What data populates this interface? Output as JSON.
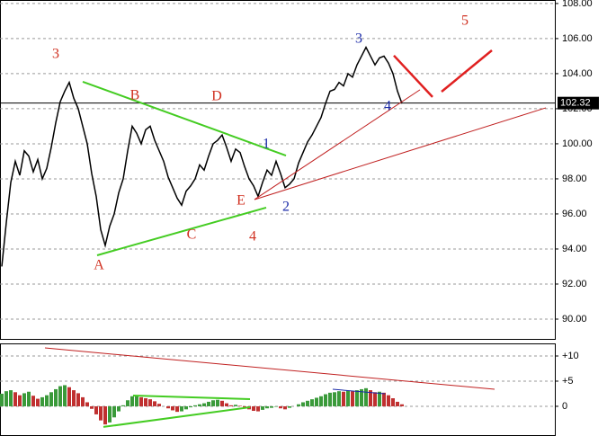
{
  "chart_data": [
    {
      "type": "line",
      "color": "#000000",
      "grid": true,
      "xlim": [
        -0.4,
        123
      ],
      "ylim": [
        88.82,
        108.2
      ],
      "yticks": [
        {
          "value": 90,
          "label": "90.00"
        },
        {
          "value": 92,
          "label": "92.00"
        },
        {
          "value": 94,
          "label": "94.00"
        },
        {
          "value": 96,
          "label": "96.00"
        },
        {
          "value": 98,
          "label": "98.00"
        },
        {
          "value": 100,
          "label": "100.00"
        },
        {
          "value": 102,
          "label": "102.00"
        },
        {
          "value": 104,
          "label": "104.00"
        },
        {
          "value": 106,
          "label": "106.00"
        },
        {
          "value": 108,
          "label": "108.00"
        }
      ],
      "last": 102.32,
      "values": [
        93,
        95.5,
        97.8,
        99,
        98.2,
        99.6,
        99.3,
        98.4,
        99.1,
        98,
        98.6,
        99.8,
        101.2,
        102.4,
        103,
        103.5,
        102.6,
        102,
        101,
        100,
        98.3,
        97,
        95.1,
        94.2,
        95.3,
        96,
        97.2,
        98,
        99.6,
        101,
        100.6,
        100,
        100.8,
        101,
        100.2,
        99.6,
        99,
        98.1,
        97.5,
        96.9,
        96.5,
        97.3,
        97.6,
        98,
        98.8,
        98.5,
        99.3,
        100,
        100.2,
        100.5,
        99.8,
        99,
        99.7,
        99.5,
        98.7,
        98,
        97.6,
        97,
        97.8,
        98.5,
        98.2,
        99,
        98.3,
        97.5,
        97.7,
        98,
        98.9,
        99.5,
        100.1,
        100.5,
        101,
        101.5,
        102.3,
        103,
        103.1,
        103.5,
        103.3,
        104,
        103.8,
        104.5,
        105,
        105.5,
        105,
        104.5,
        104.9,
        105,
        104.6,
        104,
        103,
        102.3
      ],
      "annotations": [
        {
          "text": "3",
          "x": 12,
          "y": 105.08,
          "color": "#d03020"
        },
        {
          "text": "B",
          "x": 29.6,
          "y": 102.72,
          "color": "#d03020"
        },
        {
          "text": "D",
          "x": 47.8,
          "y": 102.67,
          "color": "#d03020"
        },
        {
          "text": "3",
          "x": 79.4,
          "y": 105.95,
          "color": "#1a2aa8"
        },
        {
          "text": "5",
          "x": 103,
          "y": 106.97,
          "color": "#d03020"
        },
        {
          "text": "1",
          "x": 58.8,
          "y": 99.95,
          "color": "#1a2aa8"
        },
        {
          "text": "4",
          "x": 85.8,
          "y": 102.1,
          "color": "#1a2aa8"
        },
        {
          "text": "E",
          "x": 53.2,
          "y": 96.72,
          "color": "#d03020"
        },
        {
          "text": "2",
          "x": 63.2,
          "y": 96.36,
          "color": "#1a2aa8"
        },
        {
          "text": "C",
          "x": 42.2,
          "y": 94.77,
          "color": "#d03020"
        },
        {
          "text": "4",
          "x": 55.8,
          "y": 94.67,
          "color": "#d03020"
        },
        {
          "text": "A",
          "x": 21.6,
          "y": 93.03,
          "color": "#d03020"
        }
      ],
      "lines": [
        {
          "x1": 18,
          "y1": 103.54,
          "x2": 63.2,
          "y2": 99.33,
          "color": "#44cc22",
          "width": 2
        },
        {
          "x1": 21.2,
          "y1": 93.64,
          "x2": 58.8,
          "y2": 96.36,
          "color": "#44cc22",
          "width": 2
        },
        {
          "x1": 56.2,
          "y1": 96.82,
          "x2": 93,
          "y2": 103.08,
          "color": "#c02020",
          "width": 1
        },
        {
          "x1": 56.2,
          "y1": 96.82,
          "x2": 121,
          "y2": 102.05,
          "color": "#c02020",
          "width": 1
        },
        {
          "x1": 87.2,
          "y1": 105.03,
          "x2": 95.8,
          "y2": 102.67,
          "color": "#e02020",
          "width": 2.5
        },
        {
          "x1": 97.8,
          "y1": 102.97,
          "x2": 109,
          "y2": 105.33,
          "color": "#e02020",
          "width": 2.5
        }
      ]
    },
    {
      "type": "histogram",
      "up_color": "#3a9a3a",
      "down_color": "#c03030",
      "grid": true,
      "xlim": [
        -0.4,
        123
      ],
      "ylim": [
        -5.9,
        12.5
      ],
      "yticks": [
        0,
        {
          "value": 5,
          "label": "+5"
        },
        {
          "value": 10,
          "label": "+10"
        }
      ],
      "values": [
        2.5,
        3,
        3.2,
        2.8,
        2.2,
        2.6,
        2.9,
        2.1,
        1.5,
        1.8,
        2.2,
        2.8,
        3.4,
        4,
        4.2,
        3.8,
        3.2,
        2.6,
        1.8,
        0.8,
        -0.5,
        -1.6,
        -2.8,
        -3.6,
        -3.2,
        -2.2,
        -1,
        0.2,
        1.2,
        2,
        2.2,
        1.8,
        1.6,
        1.4,
        1,
        0.5,
        0,
        -0.4,
        -0.8,
        -1.1,
        -1,
        -0.6,
        -0.2,
        0.2,
        0.4,
        0.6,
        0.9,
        1.2,
        1.3,
        1.1,
        0.6,
        0.2,
        0.3,
        0.1,
        -0.3,
        -0.6,
        -0.9,
        -1,
        -0.7,
        -0.4,
        -0.3,
        -0.1,
        -0.4,
        -0.6,
        -0.3,
        0,
        0.4,
        0.8,
        1.1,
        1.4,
        1.7,
        2,
        2.4,
        2.7,
        2.8,
        3,
        2.9,
        3.1,
        3,
        3.2,
        3.4,
        3.6,
        3.2,
        2.8,
        2.9,
        2.7,
        2.2,
        1.6,
        0.9,
        0.4
      ],
      "lines": [
        {
          "x1": 9.6,
          "y1": 11.6,
          "x2": 109.6,
          "y2": 3.39,
          "color": "#c02020",
          "width": 1
        },
        {
          "x1": 29.2,
          "y1": 2.14,
          "x2": 55.2,
          "y2": 1.43,
          "color": "#44cc22",
          "width": 2
        },
        {
          "x1": 22.6,
          "y1": -4.1,
          "x2": 55.2,
          "y2": -0.18,
          "color": "#44cc22",
          "width": 2
        },
        {
          "x1": 73.6,
          "y1": 3.39,
          "x2": 85.2,
          "y2": 2.5,
          "color": "#1a2aa8",
          "width": 1
        }
      ]
    }
  ]
}
